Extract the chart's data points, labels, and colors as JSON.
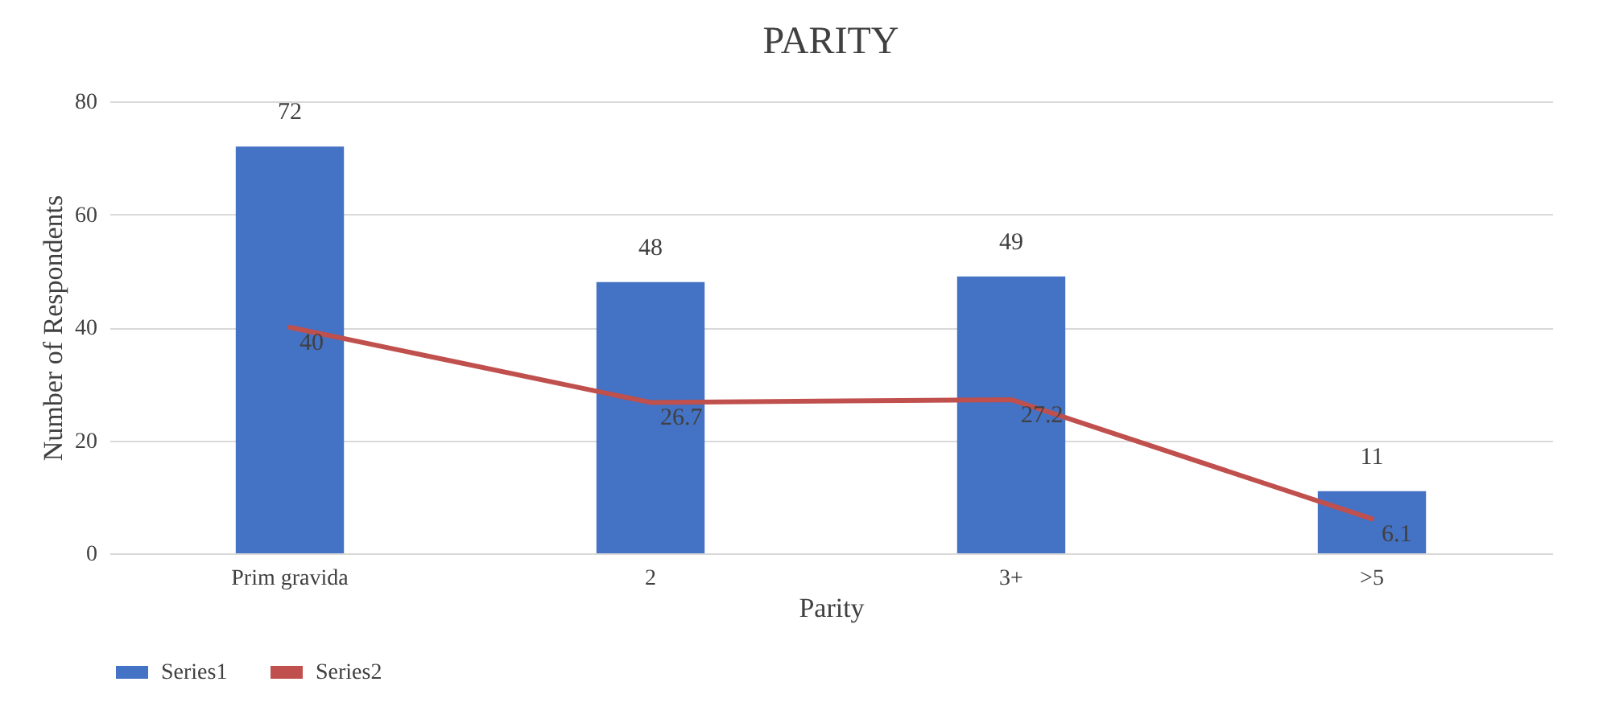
{
  "chart_data": {
    "type": "bar",
    "title": "PARITY",
    "xlabel": "Parity",
    "ylabel": "Number of Respondents",
    "categories": [
      "Prim gravida",
      "2",
      "3+",
      ">5"
    ],
    "series": [
      {
        "name": "Series1",
        "color": "#4472c4",
        "values": [
          72,
          48,
          49,
          11
        ]
      },
      {
        "name": "Series2",
        "type": "line",
        "color": "#c0504d",
        "values": [
          40,
          26.7,
          27.2,
          6.1
        ]
      }
    ],
    "ylim": [
      0,
      80
    ],
    "yticks": [
      0,
      20,
      40,
      60,
      80
    ],
    "grid": true,
    "legend": "bottom",
    "data_labels": true,
    "marker": "none",
    "line_style": "solid"
  }
}
